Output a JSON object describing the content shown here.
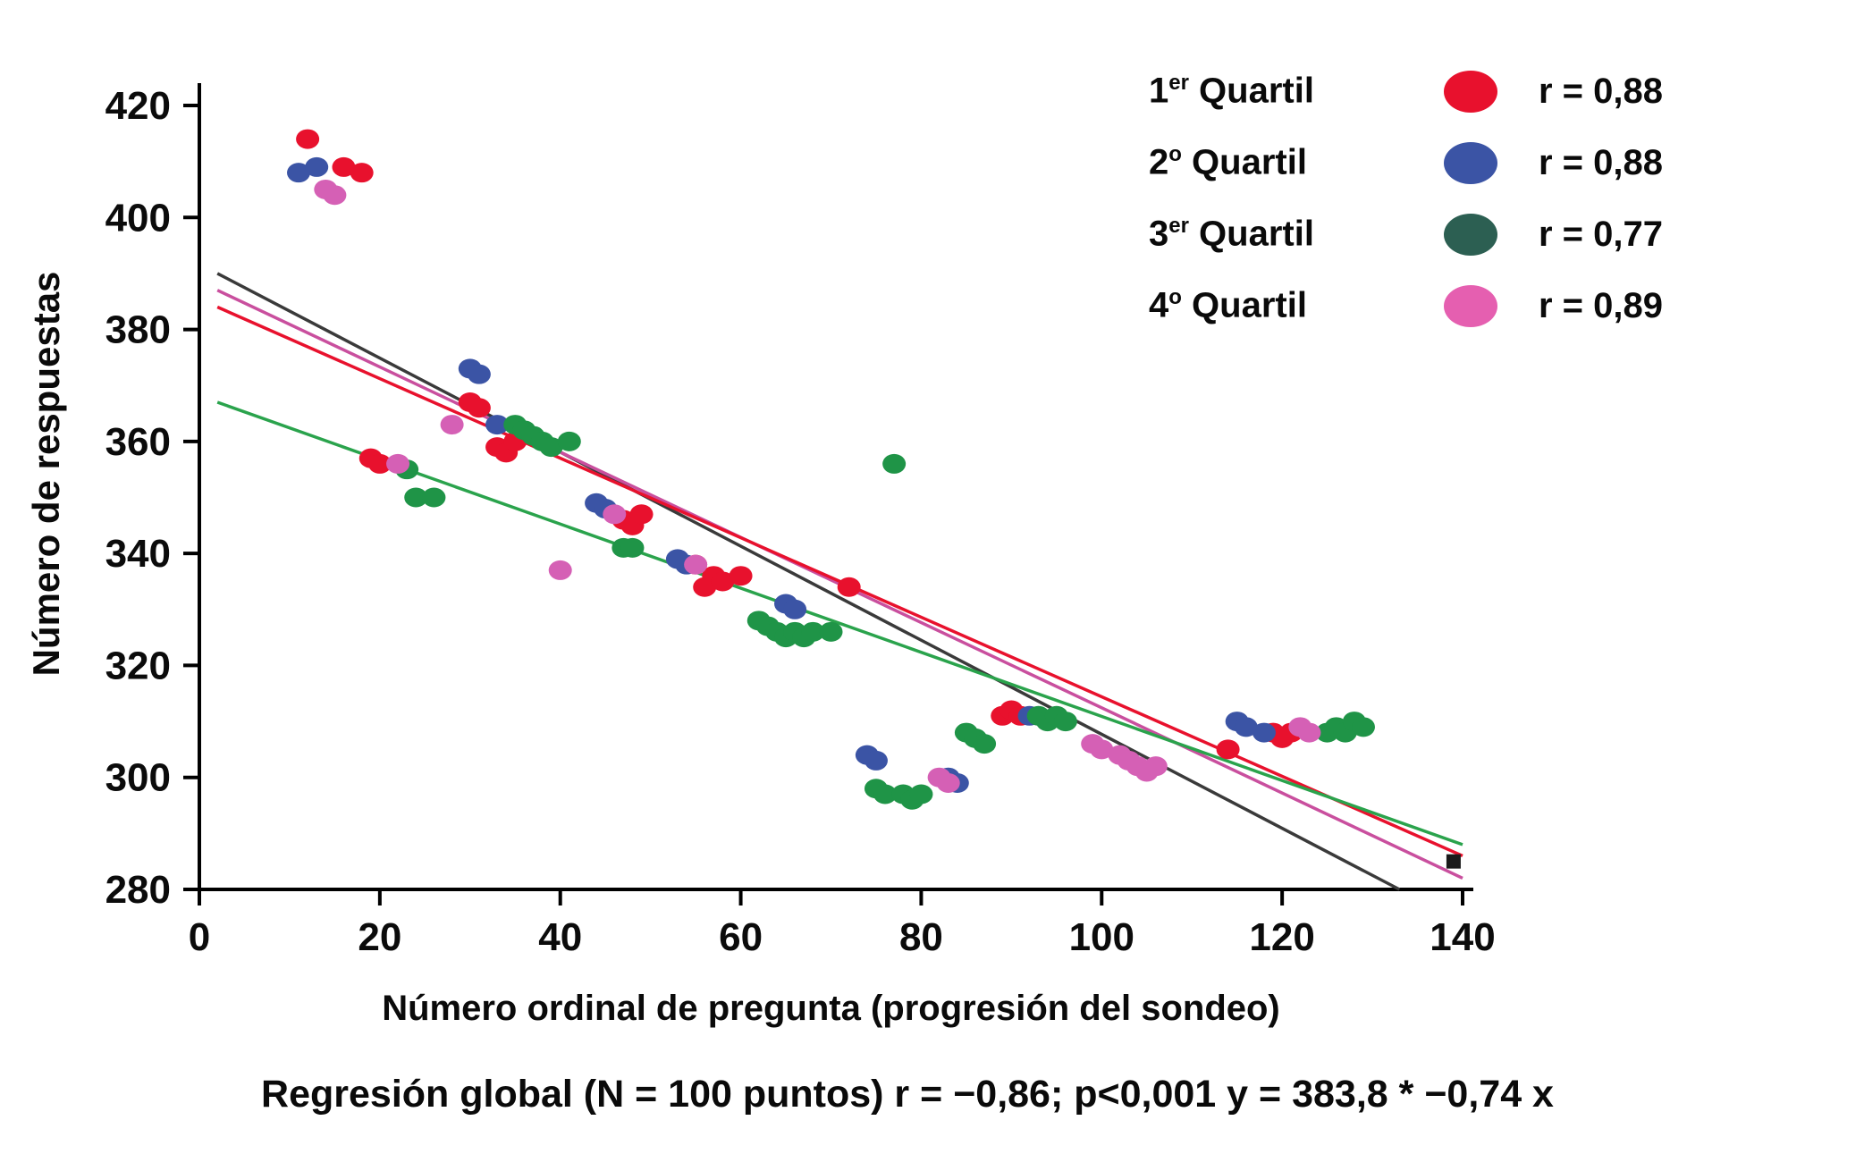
{
  "legend": {
    "items": [
      {
        "num": "1",
        "sup": "er",
        "rest": " Quartil",
        "r": "r = 0,88",
        "color": "#e8112d"
      },
      {
        "num": "2",
        "sup": "o",
        "rest": " Quartil",
        "r": "r = 0,88",
        "color": "#3b54a5"
      },
      {
        "num": "3",
        "sup": "er",
        "rest": " Quartil",
        "r": "r = 0,77",
        "color": "#2c5f52"
      },
      {
        "num": "4",
        "sup": "o",
        "rest": " Quartil",
        "r": "r = 0,89",
        "color": "#e55fb0"
      }
    ]
  },
  "caption": {
    "text": "Regresión global (N = 100 puntos) r = −0,86; p<0,001 y = 383,8 * −0,74 x"
  },
  "chart_data": {
    "type": "scatter",
    "title": "",
    "xlabel": "Número ordinal de pregunta (progresión del sondeo)",
    "ylabel": "Número de respuestas",
    "xlim": [
      0,
      140
    ],
    "ylim": [
      280,
      420
    ],
    "xticks": [
      0,
      20,
      40,
      60,
      80,
      100,
      120,
      140
    ],
    "yticks": [
      280,
      300,
      320,
      340,
      360,
      380,
      400,
      420
    ],
    "grid": false,
    "legend_position": "top-right",
    "global_regression": {
      "N": 100,
      "r": "−0,86",
      "p": "p<0,001",
      "equation": "y = 383,8 * −0,74 x"
    },
    "series": [
      {
        "name": "1er Quartil",
        "r": "0,88",
        "color": "#e8112d",
        "points": [
          [
            12,
            414
          ],
          [
            16,
            409
          ],
          [
            18,
            408
          ],
          [
            19,
            357
          ],
          [
            20,
            356
          ],
          [
            30,
            367
          ],
          [
            31,
            366
          ],
          [
            33,
            359
          ],
          [
            34,
            358
          ],
          [
            35,
            360
          ],
          [
            47,
            346
          ],
          [
            48,
            345
          ],
          [
            49,
            347
          ],
          [
            55,
            338
          ],
          [
            56,
            334
          ],
          [
            57,
            336
          ],
          [
            58,
            335
          ],
          [
            60,
            336
          ],
          [
            72,
            334
          ],
          [
            89,
            311
          ],
          [
            90,
            312
          ],
          [
            91,
            311
          ],
          [
            114,
            305
          ],
          [
            119,
            308
          ],
          [
            120,
            307
          ],
          [
            121,
            308
          ]
        ]
      },
      {
        "name": "2º Quartil",
        "r": "0,88",
        "color": "#3b54a5",
        "points": [
          [
            11,
            408
          ],
          [
            13,
            409
          ],
          [
            30,
            373
          ],
          [
            31,
            372
          ],
          [
            33,
            363
          ],
          [
            44,
            349
          ],
          [
            45,
            348
          ],
          [
            53,
            339
          ],
          [
            54,
            338
          ],
          [
            65,
            331
          ],
          [
            66,
            330
          ],
          [
            74,
            304
          ],
          [
            75,
            303
          ],
          [
            83,
            300
          ],
          [
            84,
            299
          ],
          [
            92,
            311
          ],
          [
            115,
            310
          ],
          [
            116,
            309
          ],
          [
            118,
            308
          ]
        ]
      },
      {
        "name": "3er Quartil",
        "r": "0,77",
        "color": "#1f9447",
        "points": [
          [
            23,
            355
          ],
          [
            24,
            350
          ],
          [
            26,
            350
          ],
          [
            35,
            363
          ],
          [
            36,
            362
          ],
          [
            37,
            361
          ],
          [
            38,
            360
          ],
          [
            39,
            359
          ],
          [
            41,
            360
          ],
          [
            47,
            341
          ],
          [
            48,
            341
          ],
          [
            62,
            328
          ],
          [
            63,
            327
          ],
          [
            64,
            326
          ],
          [
            65,
            325
          ],
          [
            66,
            326
          ],
          [
            67,
            325
          ],
          [
            68,
            326
          ],
          [
            70,
            326
          ],
          [
            77,
            356
          ],
          [
            75,
            298
          ],
          [
            76,
            297
          ],
          [
            78,
            297
          ],
          [
            79,
            296
          ],
          [
            80,
            297
          ],
          [
            85,
            308
          ],
          [
            86,
            307
          ],
          [
            87,
            306
          ],
          [
            93,
            311
          ],
          [
            94,
            310
          ],
          [
            95,
            311
          ],
          [
            96,
            310
          ],
          [
            125,
            308
          ],
          [
            126,
            309
          ],
          [
            127,
            308
          ],
          [
            128,
            310
          ],
          [
            129,
            309
          ]
        ]
      },
      {
        "name": "4º Quartil",
        "r": "0,89",
        "color": "#d560b5",
        "points": [
          [
            14,
            405
          ],
          [
            15,
            404
          ],
          [
            22,
            356
          ],
          [
            28,
            363
          ],
          [
            40,
            337
          ],
          [
            46,
            347
          ],
          [
            55,
            338
          ],
          [
            82,
            300
          ],
          [
            83,
            299
          ],
          [
            99,
            306
          ],
          [
            100,
            305
          ],
          [
            102,
            304
          ],
          [
            103,
            303
          ],
          [
            104,
            302
          ],
          [
            105,
            301
          ],
          [
            106,
            302
          ],
          [
            122,
            309
          ],
          [
            123,
            308
          ]
        ]
      }
    ],
    "regression_lines": [
      {
        "name": "global-black",
        "color": "#3a3a3a",
        "x1": 2,
        "y1": 390,
        "x2": 133,
        "y2": 280
      },
      {
        "name": "quartil4-magenta",
        "color": "#c94f9e",
        "x1": 2,
        "y1": 387,
        "x2": 140,
        "y2": 282
      },
      {
        "name": "quartil1-red",
        "color": "#e8112d",
        "x1": 2,
        "y1": 384,
        "x2": 140,
        "y2": 286
      },
      {
        "name": "quartil3-green",
        "color": "#2aa34c",
        "x1": 2,
        "y1": 367,
        "x2": 140,
        "y2": 288
      }
    ],
    "end_marker": {
      "x": 139,
      "y": 285,
      "color": "#1a1a1a"
    }
  }
}
